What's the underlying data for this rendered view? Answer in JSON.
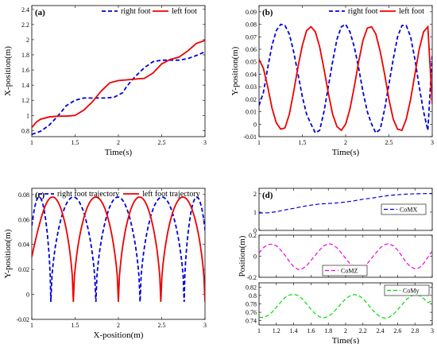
{
  "chart_data": [
    {
      "id": "a",
      "type": "line",
      "panel_label": "(a)",
      "xlabel": "Time(s)",
      "ylabel": "X-position(m)",
      "xlim": [
        1,
        3
      ],
      "ylim": [
        0.72,
        2.45
      ],
      "xticks": [
        1,
        1.5,
        2,
        2.5,
        3
      ],
      "xtick_labels": [
        "1",
        "1.5",
        "2",
        "2.5",
        "3"
      ],
      "yticks": [
        0.8,
        1,
        1.2,
        1.4,
        1.6,
        1.8,
        2,
        2.2,
        2.4
      ],
      "ytick_labels": [
        "0.8",
        "1",
        "1.2",
        "1.4",
        "1.6",
        "1.8",
        "2",
        "2.2",
        "2.4"
      ],
      "legend": "top",
      "series": [
        {
          "name": "right foot",
          "color": "#0000dd",
          "dash": "dashed",
          "x": [
            1.0,
            1.1,
            1.2,
            1.3,
            1.4,
            1.5,
            1.6,
            1.7,
            1.75,
            1.85,
            1.95,
            2.05,
            2.1,
            2.2,
            2.3,
            2.4,
            2.5,
            2.6,
            2.7,
            2.8,
            2.9,
            3.0
          ],
          "y": [
            0.75,
            0.79,
            0.87,
            0.99,
            1.13,
            1.2,
            1.23,
            1.23,
            1.23,
            1.23,
            1.24,
            1.3,
            1.39,
            1.52,
            1.63,
            1.71,
            1.73,
            1.73,
            1.73,
            1.75,
            1.79,
            1.84
          ]
        },
        {
          "name": "left foot",
          "color": "#ee0000",
          "dash": "solid",
          "x": [
            1.0,
            1.05,
            1.1,
            1.2,
            1.3,
            1.4,
            1.5,
            1.6,
            1.7,
            1.8,
            1.9,
            2.0,
            2.1,
            2.2,
            2.3,
            2.4,
            2.5,
            2.6,
            2.7,
            2.8,
            2.9,
            3.0
          ],
          "y": [
            0.84,
            0.91,
            0.95,
            0.98,
            0.99,
            0.99,
            1.0,
            1.07,
            1.18,
            1.32,
            1.43,
            1.46,
            1.47,
            1.48,
            1.49,
            1.56,
            1.68,
            1.74,
            1.77,
            1.85,
            1.95,
            1.99
          ]
        }
      ]
    },
    {
      "id": "b",
      "type": "line",
      "panel_label": "(b)",
      "xlabel": "Time(s)",
      "ylabel": "Y-position(m)",
      "xlim": [
        1,
        3
      ],
      "ylim": [
        -0.01,
        0.095
      ],
      "xticks": [
        1,
        1.5,
        2,
        2.5,
        3
      ],
      "xtick_labels": [
        "1",
        "1.5",
        "2",
        "2.5",
        "3"
      ],
      "yticks": [
        -0.01,
        0,
        0.01,
        0.02,
        0.03,
        0.04,
        0.05,
        0.06,
        0.07,
        0.08,
        0.09
      ],
      "ytick_labels": [
        "-0.01",
        "0",
        "0.01",
        "0.02",
        "0.03",
        "0.04",
        "0.05",
        "0.06",
        "0.07",
        "0.08",
        "0.09"
      ],
      "legend": "top",
      "series": [
        {
          "name": "right foot",
          "color": "#0000dd",
          "dash": "dashed",
          "x": [
            1.0,
            1.05,
            1.1,
            1.15,
            1.2,
            1.25,
            1.3,
            1.35,
            1.4,
            1.45,
            1.5,
            1.55,
            1.6,
            1.65,
            1.7,
            1.75,
            1.8,
            1.85,
            1.9,
            1.95,
            2.0,
            2.05,
            2.1,
            2.15,
            2.2,
            2.25,
            2.3,
            2.35,
            2.4,
            2.45,
            2.5,
            2.55,
            2.6,
            2.65,
            2.7,
            2.75,
            2.8,
            2.85,
            2.9,
            2.95,
            3.0
          ],
          "y": [
            0.015,
            0.025,
            0.045,
            0.063,
            0.075,
            0.08,
            0.079,
            0.072,
            0.058,
            0.04,
            0.022,
            0.008,
            0.0,
            -0.007,
            -0.005,
            0.01,
            0.03,
            0.05,
            0.068,
            0.078,
            0.08,
            0.074,
            0.062,
            0.045,
            0.026,
            0.01,
            0.0,
            -0.007,
            -0.004,
            0.012,
            0.032,
            0.052,
            0.07,
            0.079,
            0.079,
            0.07,
            0.052,
            0.03,
            0.01,
            -0.005,
            0.055
          ]
        },
        {
          "name": "left foot",
          "color": "#ee0000",
          "dash": "solid",
          "x": [
            1.0,
            1.05,
            1.1,
            1.15,
            1.2,
            1.25,
            1.3,
            1.35,
            1.4,
            1.45,
            1.5,
            1.55,
            1.6,
            1.65,
            1.7,
            1.75,
            1.8,
            1.85,
            1.9,
            1.95,
            2.0,
            2.05,
            2.1,
            2.15,
            2.2,
            2.25,
            2.3,
            2.35,
            2.4,
            2.45,
            2.5,
            2.55,
            2.6,
            2.65,
            2.7,
            2.75,
            2.8,
            2.85,
            2.9,
            2.95,
            3.0
          ],
          "y": [
            0.052,
            0.045,
            0.03,
            0.013,
            0.001,
            -0.004,
            -0.003,
            0.008,
            0.026,
            0.046,
            0.063,
            0.075,
            0.078,
            0.074,
            0.062,
            0.044,
            0.025,
            0.008,
            -0.002,
            -0.005,
            0.0,
            0.012,
            0.03,
            0.05,
            0.067,
            0.077,
            0.078,
            0.072,
            0.058,
            0.04,
            0.02,
            0.004,
            -0.004,
            -0.005,
            0.004,
            0.02,
            0.04,
            0.06,
            0.074,
            0.078,
            0.016
          ]
        }
      ]
    },
    {
      "id": "c",
      "type": "line",
      "panel_label": "(c)",
      "xlabel": "X-position(m)",
      "ylabel": "Y-position(m)",
      "xlim": [
        1,
        3
      ],
      "ylim": [
        -0.02,
        0.085
      ],
      "xticks": [
        1,
        1.5,
        2,
        2.5,
        3
      ],
      "xtick_labels": [
        "1",
        "1.5",
        "2",
        "2.5",
        "3"
      ],
      "yticks": [
        -0.02,
        0,
        0.02,
        0.04,
        0.06,
        0.08
      ],
      "ytick_labels": [
        "-0.02",
        "0",
        "0.02",
        "0.04",
        "0.06",
        "0.08"
      ],
      "legend": "top",
      "series": [
        {
          "name": "right foot trajectory",
          "color": "#0000dd",
          "dash": "dashed",
          "arches": [
            [
              0.95,
              1.22
            ],
            [
              1.22,
              1.74
            ],
            [
              1.74,
              2.25
            ],
            [
              2.25,
              2.76
            ],
            [
              2.76,
              3.05
            ]
          ],
          "peak": 0.078,
          "floor": -0.006
        },
        {
          "name": "left foot trajectory",
          "color": "#ee0000",
          "dash": "solid",
          "arches": [
            [
              1.0,
              1.48
            ],
            [
              1.48,
              2.0
            ],
            [
              2.0,
              2.49
            ],
            [
              2.49,
              3.0
            ]
          ],
          "peak": 0.078,
          "floor": -0.006,
          "start_y": 0.03
        }
      ]
    },
    {
      "id": "d1",
      "type": "line",
      "panel_label": "(d)",
      "xlim": [
        1,
        3
      ],
      "ylim": [
        0,
        2.3
      ],
      "xticks": [
        1,
        1.2,
        1.4,
        1.6,
        1.8,
        2,
        2.2,
        2.4,
        2.6,
        2.8,
        3
      ],
      "xtick_labels": [
        "",
        "",
        "",
        "",
        "",
        "",
        "",
        "",
        "",
        "",
        ""
      ],
      "yticks": [
        0,
        1,
        2
      ],
      "ytick_labels": [
        "0",
        "1",
        "2"
      ],
      "legend": "right",
      "series": [
        {
          "name": "CoMX",
          "color": "#0000dd",
          "dash": "dashed",
          "x": [
            1.0,
            1.1,
            1.2,
            1.3,
            1.4,
            1.5,
            1.6,
            1.7,
            1.8,
            1.9,
            2.0,
            2.1,
            2.2,
            2.3,
            2.4,
            2.5,
            2.6,
            2.7,
            2.8,
            2.9,
            3.0
          ],
          "y": [
            0.95,
            0.96,
            1.02,
            1.12,
            1.2,
            1.3,
            1.38,
            1.44,
            1.47,
            1.5,
            1.55,
            1.62,
            1.7,
            1.76,
            1.84,
            1.91,
            1.95,
            1.98,
            2.0,
            2.01,
            2.02
          ]
        }
      ]
    },
    {
      "id": "d2",
      "type": "line",
      "xlim": [
        1,
        3
      ],
      "ylim": [
        -0.2,
        0.2
      ],
      "xticks": [
        1,
        1.2,
        1.4,
        1.6,
        1.8,
        2,
        2.2,
        2.4,
        2.6,
        2.8,
        3
      ],
      "xtick_labels": [
        "",
        "",
        "",
        "",
        "",
        "",
        "",
        "",
        "",
        "",
        ""
      ],
      "yticks": [
        -0.2,
        0,
        0.2
      ],
      "ytick_labels": [
        "-0.2",
        "0",
        "0.2"
      ],
      "ylabel": "Position(m)",
      "legend": "bottom-center",
      "series": [
        {
          "name": "CoMZ",
          "color": "#ee00ee",
          "dash": "dashed",
          "x": [
            1.0,
            1.05,
            1.1,
            1.15,
            1.2,
            1.25,
            1.3,
            1.35,
            1.4,
            1.45,
            1.5,
            1.55,
            1.6,
            1.65,
            1.7,
            1.75,
            1.8,
            1.85,
            1.9,
            1.95,
            2.0,
            2.05,
            2.1,
            2.15,
            2.2,
            2.25,
            2.3,
            2.35,
            2.4,
            2.45,
            2.5,
            2.55,
            2.6,
            2.65,
            2.7,
            2.75,
            2.8,
            2.85,
            2.9,
            2.95,
            3.0
          ],
          "y": [
            0.03,
            0.08,
            0.11,
            0.115,
            0.1,
            0.06,
            0.01,
            -0.05,
            -0.1,
            -0.125,
            -0.12,
            -0.09,
            -0.04,
            0.01,
            0.06,
            0.1,
            0.12,
            0.11,
            0.08,
            0.03,
            -0.02,
            -0.07,
            -0.11,
            -0.125,
            -0.11,
            -0.07,
            -0.02,
            0.03,
            0.08,
            0.11,
            0.12,
            0.1,
            0.06,
            0.0,
            -0.06,
            -0.1,
            -0.12,
            -0.11,
            -0.07,
            -0.01,
            0.05
          ]
        }
      ]
    },
    {
      "id": "d3",
      "type": "line",
      "xlabel": "Time(s)",
      "xlim": [
        1,
        3
      ],
      "ylim": [
        0.73,
        0.83
      ],
      "xticks": [
        1,
        1.2,
        1.4,
        1.6,
        1.8,
        2,
        2.2,
        2.4,
        2.6,
        2.8,
        3
      ],
      "xtick_labels": [
        "1",
        "1.2",
        "1.4",
        "1.6",
        "1.8",
        "2",
        "2.2",
        "2.4",
        "2.6",
        "2.8",
        "3"
      ],
      "yticks": [
        0.74,
        0.76,
        0.78,
        0.8,
        0.82
      ],
      "ytick_labels": [
        "0.74",
        "0.76",
        "0.78",
        "0.8",
        "0.82"
      ],
      "legend": "top-right",
      "series": [
        {
          "name": "CoMy",
          "color": "#00dd00",
          "dash": "dashed",
          "x": [
            1.0,
            1.05,
            1.1,
            1.15,
            1.2,
            1.25,
            1.3,
            1.35,
            1.4,
            1.45,
            1.5,
            1.55,
            1.6,
            1.65,
            1.7,
            1.75,
            1.8,
            1.85,
            1.9,
            1.95,
            2.0,
            2.05,
            2.1,
            2.15,
            2.2,
            2.25,
            2.3,
            2.35,
            2.4,
            2.45,
            2.5,
            2.55,
            2.6,
            2.65,
            2.7,
            2.75,
            2.8,
            2.85,
            2.9,
            2.95,
            3.0
          ],
          "y": [
            0.748,
            0.748,
            0.752,
            0.76,
            0.772,
            0.784,
            0.795,
            0.801,
            0.803,
            0.8,
            0.792,
            0.78,
            0.767,
            0.756,
            0.749,
            0.747,
            0.75,
            0.758,
            0.769,
            0.781,
            0.792,
            0.799,
            0.802,
            0.8,
            0.792,
            0.781,
            0.768,
            0.757,
            0.749,
            0.746,
            0.748,
            0.755,
            0.766,
            0.778,
            0.79,
            0.798,
            0.802,
            0.8,
            0.793,
            0.783,
            0.788
          ]
        }
      ]
    }
  ]
}
